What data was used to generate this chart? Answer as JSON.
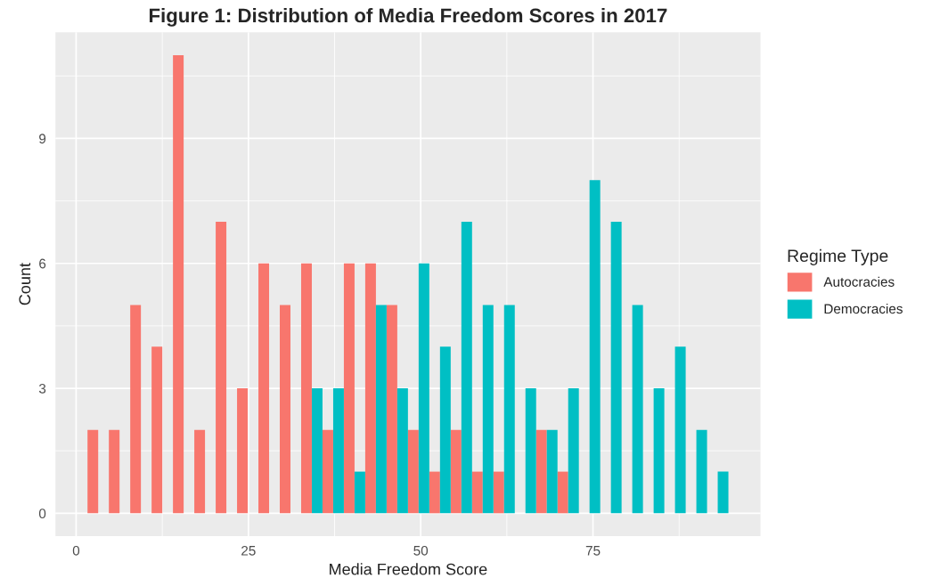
{
  "chart_data": {
    "type": "histogram",
    "title": "Figure 1: Distribution of Media Freedom Scores in 2017",
    "xlabel": "Media Freedom Score",
    "ylabel": "Count",
    "legend_title": "Regime Type",
    "bins": [
      1.65,
      4.75,
      7.85,
      10.95,
      14.05,
      17.15,
      20.25,
      23.35,
      26.45,
      29.55,
      32.65,
      35.75,
      38.85,
      41.95,
      45.05,
      48.15,
      51.25,
      54.35,
      57.45,
      60.55,
      63.65,
      66.75,
      69.85,
      72.95,
      76.05,
      79.15,
      82.25,
      85.35,
      88.45,
      91.55,
      94.65
    ],
    "series": [
      {
        "name": "Autocracies",
        "color": "#f8766d",
        "values": [
          2,
          2,
          5,
          4,
          11,
          2,
          7,
          3,
          6,
          5,
          6,
          2,
          6,
          6,
          5,
          2,
          1,
          2,
          1,
          1,
          0,
          2,
          1,
          0,
          0,
          0,
          0,
          0,
          0,
          0
        ]
      },
      {
        "name": "Democracies",
        "color": "#00bfc4",
        "values": [
          0,
          0,
          0,
          0,
          0,
          0,
          0,
          0,
          0,
          0,
          3,
          3,
          1,
          5,
          3,
          6,
          4,
          7,
          5,
          5,
          3,
          2,
          3,
          8,
          7,
          5,
          3,
          4,
          2,
          1
        ]
      }
    ],
    "xlim": [
      -3.0,
      99.3
    ],
    "ylim": [
      -0.55,
      11.55
    ],
    "xticks": [
      0,
      25,
      50,
      75
    ],
    "yticks": [
      0,
      3,
      6,
      9
    ],
    "grid": true,
    "legend": "right"
  }
}
